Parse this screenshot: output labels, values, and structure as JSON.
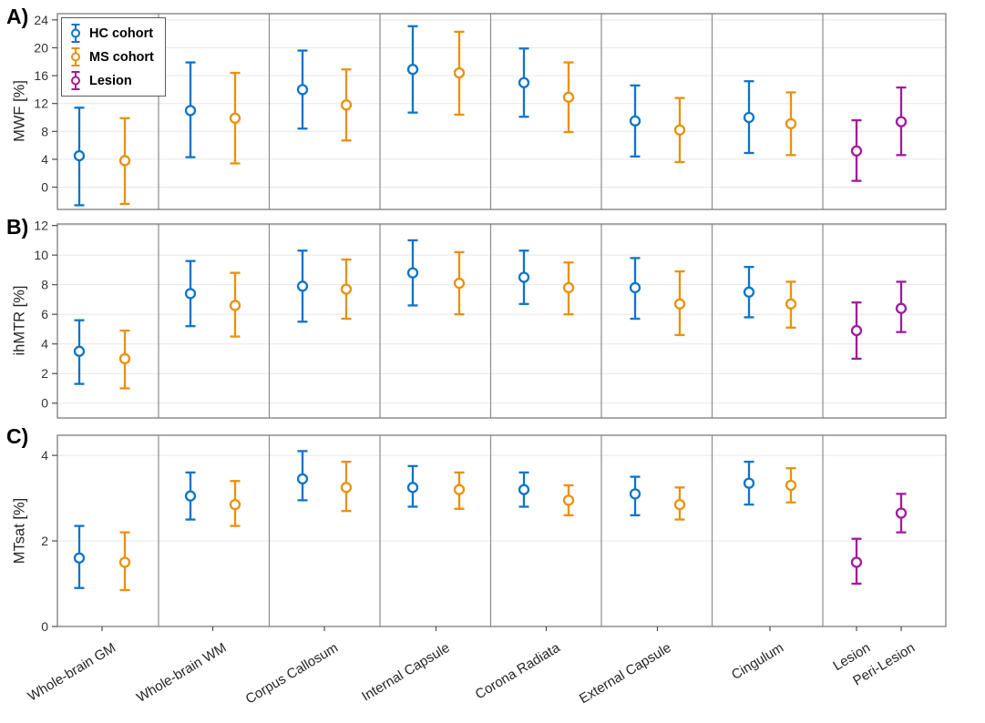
{
  "figure": {
    "panel_letters": [
      "A)",
      "B)",
      "C)"
    ]
  },
  "legend": {
    "items": [
      {
        "label": "HC cohort",
        "color": "#0E74C8"
      },
      {
        "label": "MS cohort",
        "color": "#E8910D"
      },
      {
        "label": "Lesion",
        "color": "#A21A9E"
      }
    ],
    "position": "top-left inside panel A"
  },
  "colors": {
    "hc_blue": "#0E74C8",
    "ms_orange": "#E8910D",
    "lesion_magenta": "#A21A9E",
    "gridline": "#e7e7e7",
    "panel_border": "#7d7d7d",
    "separator": "#8c8c8c",
    "tick": "#4d4d4d",
    "tick_text": "#333333"
  },
  "chart_data": {
    "type": "errorbar",
    "grid": "horizontal gridlines at y ticks, vertical separators between regions",
    "categories": [
      "Whole-brain GM",
      "Whole-brain WM",
      "Corpus Callosum",
      "Internal Capsule",
      "Corona Radiata",
      "External Capsule",
      "Cingulum",
      "Lesion",
      "Peri-Lesion"
    ],
    "panels": [
      {
        "label": "A)",
        "ylabel": "MWF [%]",
        "ylim": [
          -3.2,
          24.9
        ],
        "yticks": [
          0,
          4,
          8,
          12,
          16,
          20,
          24
        ],
        "series": [
          {
            "name": "HC cohort",
            "color": "#0E74C8",
            "mean": [
              4.5,
              11.0,
              14.0,
              16.9,
              15.0,
              9.5,
              10.0,
              null,
              null
            ],
            "lower": [
              -2.6,
              4.3,
              8.4,
              10.7,
              10.1,
              4.4,
              4.9,
              null,
              null
            ],
            "upper": [
              11.4,
              17.9,
              19.6,
              23.1,
              19.9,
              14.6,
              15.2,
              null,
              null
            ]
          },
          {
            "name": "MS cohort",
            "color": "#E8910D",
            "mean": [
              3.8,
              9.9,
              11.8,
              16.4,
              12.9,
              8.2,
              9.1,
              null,
              null
            ],
            "lower": [
              -2.4,
              3.4,
              6.7,
              10.4,
              7.9,
              3.6,
              4.6,
              null,
              null
            ],
            "upper": [
              9.9,
              16.4,
              16.9,
              22.3,
              17.9,
              12.8,
              13.6,
              null,
              null
            ]
          },
          {
            "name": "Lesion",
            "color": "#A21A9E",
            "mean": [
              null,
              null,
              null,
              null,
              null,
              null,
              null,
              5.2,
              9.4
            ],
            "lower": [
              null,
              null,
              null,
              null,
              null,
              null,
              null,
              0.9,
              4.6
            ],
            "upper": [
              null,
              null,
              null,
              null,
              null,
              null,
              null,
              9.6,
              14.3
            ]
          }
        ]
      },
      {
        "label": "B)",
        "ylabel": "ihMTR [%]",
        "ylim": [
          -1.0,
          12.1
        ],
        "yticks": [
          0,
          2,
          4,
          6,
          8,
          10,
          12
        ],
        "series": [
          {
            "name": "HC cohort",
            "color": "#0E74C8",
            "mean": [
              3.5,
              7.4,
              7.9,
              8.8,
              8.5,
              7.8,
              7.5,
              null,
              null
            ],
            "lower": [
              1.3,
              5.2,
              5.5,
              6.6,
              6.7,
              5.7,
              5.8,
              null,
              null
            ],
            "upper": [
              5.6,
              9.6,
              10.3,
              11.0,
              10.3,
              9.8,
              9.2,
              null,
              null
            ]
          },
          {
            "name": "MS cohort",
            "color": "#E8910D",
            "mean": [
              3.0,
              6.6,
              7.7,
              8.1,
              7.8,
              6.7,
              6.7,
              null,
              null
            ],
            "lower": [
              1.0,
              4.5,
              5.7,
              6.0,
              6.0,
              4.6,
              5.1,
              null,
              null
            ],
            "upper": [
              4.9,
              8.8,
              9.7,
              10.2,
              9.5,
              8.9,
              8.2,
              null,
              null
            ]
          },
          {
            "name": "Lesion",
            "color": "#A21A9E",
            "mean": [
              null,
              null,
              null,
              null,
              null,
              null,
              null,
              4.9,
              6.4
            ],
            "lower": [
              null,
              null,
              null,
              null,
              null,
              null,
              null,
              3.0,
              4.8
            ],
            "upper": [
              null,
              null,
              null,
              null,
              null,
              null,
              null,
              6.8,
              8.2
            ]
          }
        ]
      },
      {
        "label": "C)",
        "ylabel": "MTsat [%]",
        "ylim": [
          0,
          4.47
        ],
        "yticks": [
          0,
          2,
          4
        ],
        "series": [
          {
            "name": "HC cohort",
            "color": "#0E74C8",
            "mean": [
              1.6,
              3.05,
              3.45,
              3.25,
              3.2,
              3.1,
              3.35,
              null,
              null
            ],
            "lower": [
              0.9,
              2.5,
              2.95,
              2.8,
              2.8,
              2.6,
              2.85,
              null,
              null
            ],
            "upper": [
              2.35,
              3.6,
              4.1,
              3.75,
              3.6,
              3.5,
              3.85,
              null,
              null
            ]
          },
          {
            "name": "MS cohort",
            "color": "#E8910D",
            "mean": [
              1.5,
              2.85,
              3.25,
              3.2,
              2.95,
              2.85,
              3.3,
              null,
              null
            ],
            "lower": [
              0.85,
              2.35,
              2.7,
              2.75,
              2.6,
              2.5,
              2.9,
              null,
              null
            ],
            "upper": [
              2.2,
              3.4,
              3.85,
              3.6,
              3.3,
              3.25,
              3.7,
              null,
              null
            ]
          },
          {
            "name": "Lesion",
            "color": "#A21A9E",
            "mean": [
              null,
              null,
              null,
              null,
              null,
              null,
              null,
              1.5,
              2.65
            ],
            "lower": [
              null,
              null,
              null,
              null,
              null,
              null,
              null,
              1.0,
              2.2
            ],
            "upper": [
              null,
              null,
              null,
              null,
              null,
              null,
              null,
              2.05,
              3.1
            ]
          }
        ]
      }
    ]
  }
}
